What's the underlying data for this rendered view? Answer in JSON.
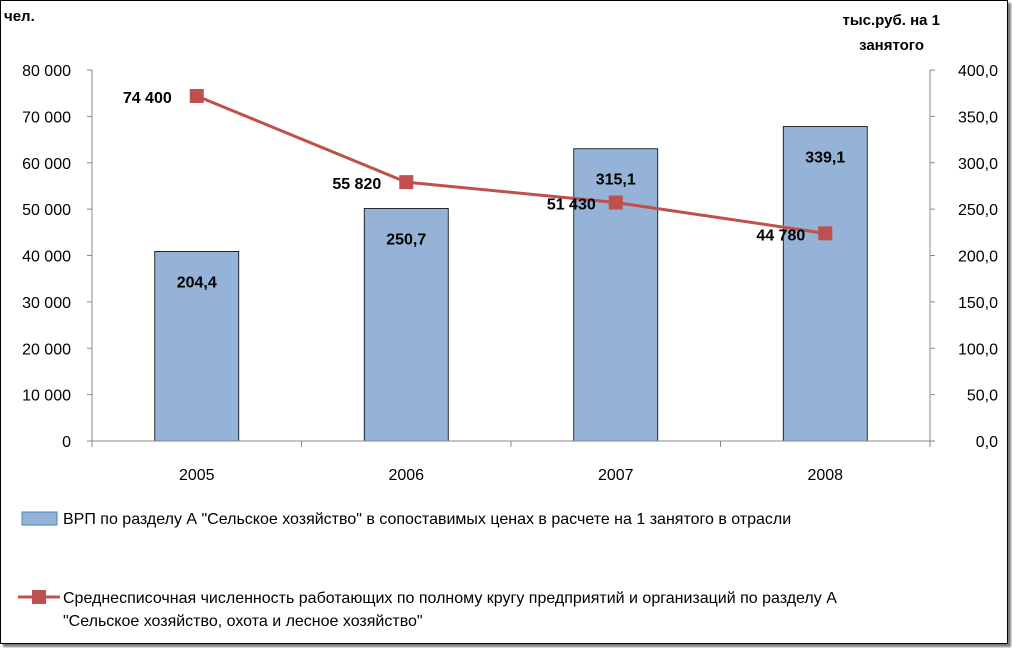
{
  "chart_data": {
    "type": "bar",
    "categories": [
      "2005",
      "2006",
      "2007",
      "2008"
    ],
    "y_left": {
      "label": "чел.",
      "ylim": [
        0,
        80000
      ],
      "ticks": [
        "0",
        "10 000",
        "20 000",
        "30 000",
        "40 000",
        "50 000",
        "60 000",
        "70 000",
        "80 000"
      ]
    },
    "y_right": {
      "label_line1": "тыс.руб. на 1",
      "label_line2": "занятого",
      "ylim": [
        0,
        400
      ],
      "ticks": [
        "0,0",
        "50,0",
        "100,0",
        "150,0",
        "200,0",
        "250,0",
        "300,0",
        "350,0",
        "400,0"
      ]
    },
    "series": [
      {
        "name": "ВРП по разделу А \"Сельское хозяйство\" в сопоставимых ценах в расчете на 1 занятого в отрасли",
        "type": "bar",
        "axis": "right",
        "values": [
          204.4,
          250.7,
          315.1,
          339.1
        ],
        "labels": [
          "204,4",
          "250,7",
          "315,1",
          "339,1"
        ],
        "color": "#95b3d7"
      },
      {
        "name_line1": "Среднесписочная численность работающих по полному кругу предприятий и организаций по разделу А",
        "name_line2": "\"Сельское хозяйство, охота и лесное хозяйство\"",
        "type": "line",
        "axis": "left",
        "values": [
          74400,
          55820,
          51430,
          44780
        ],
        "labels": [
          "74 400",
          "55 820",
          "51 430",
          "44 780"
        ],
        "color": "#c0504d"
      }
    ],
    "grid": false,
    "legend": "bottom"
  }
}
